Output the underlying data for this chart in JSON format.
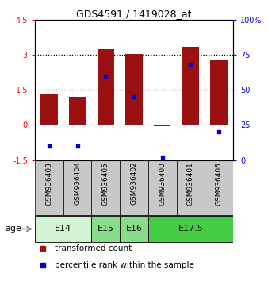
{
  "title": "GDS4591 / 1419028_at",
  "samples": [
    "GSM936403",
    "GSM936404",
    "GSM936405",
    "GSM936402",
    "GSM936400",
    "GSM936401",
    "GSM936406"
  ],
  "transformed_count": [
    1.3,
    1.2,
    3.25,
    3.05,
    -0.07,
    3.35,
    2.75
  ],
  "percentile_rank": [
    10,
    10,
    60,
    45,
    2,
    68,
    20
  ],
  "left_ylim": [
    -1.5,
    4.5
  ],
  "right_ylim": [
    0,
    100
  ],
  "left_yticks": [
    -1.5,
    0,
    1.5,
    3,
    4.5
  ],
  "right_yticks": [
    0,
    25,
    50,
    75,
    100
  ],
  "right_yticklabels": [
    "0",
    "25",
    "50",
    "75",
    "100%"
  ],
  "dotted_lines": [
    1.5,
    3.0
  ],
  "zero_line_color": "#8B2020",
  "bar_color": "#9B1010",
  "dot_color": "#0000CC",
  "age_groups": [
    {
      "label": "E14",
      "start": 0,
      "end": 2,
      "color": "#d4f5d4"
    },
    {
      "label": "E15",
      "start": 2,
      "end": 3,
      "color": "#88dd88"
    },
    {
      "label": "E16",
      "start": 3,
      "end": 4,
      "color": "#88dd88"
    },
    {
      "label": "E17.5",
      "start": 4,
      "end": 7,
      "color": "#44cc44"
    }
  ],
  "age_label": "age",
  "legend_items": [
    {
      "color": "#9B1010",
      "label": "transformed count"
    },
    {
      "color": "#0000CC",
      "label": "percentile rank within the sample"
    }
  ],
  "sample_box_color": "#c8c8c8",
  "plot_bg": "#ffffff"
}
